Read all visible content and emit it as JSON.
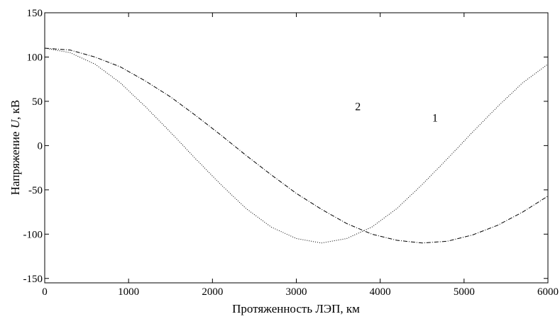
{
  "chart_data": {
    "type": "line",
    "title": "",
    "xlabel": "Протяженность ЛЭП, км",
    "ylabel_parts": [
      "Напряжение ",
      "U",
      ", кВ"
    ],
    "xlim": [
      0,
      6000
    ],
    "ylim": [
      -155,
      150
    ],
    "xticks": [
      0,
      1000,
      2000,
      3000,
      4000,
      5000,
      6000
    ],
    "yticks": [
      -150,
      -100,
      -50,
      0,
      50,
      100,
      150
    ],
    "xtick_labels": [
      "0",
      "1000",
      "2000",
      "3000",
      "4000",
      "5000",
      "6000"
    ],
    "ytick_labels": [
      "-150",
      "-100",
      "-50",
      "0",
      "50",
      "100",
      "150"
    ],
    "grid": false,
    "line_color": "#000000",
    "series": [
      {
        "name": "1",
        "x": [
          0,
          300,
          600,
          900,
          1200,
          1500,
          1800,
          2100,
          2400,
          2700,
          3000,
          3300,
          3600,
          3900,
          4200,
          4500,
          4800,
          5100,
          5400,
          5700,
          6000
        ],
        "y": [
          110,
          108,
          100,
          89,
          73,
          55,
          34,
          12,
          -11,
          -33,
          -54,
          -72,
          -88,
          -100,
          -107,
          -110,
          -108,
          -101,
          -90,
          -75,
          -57
        ]
      },
      {
        "name": "2",
        "x": [
          0,
          300,
          600,
          900,
          1200,
          1500,
          1800,
          2100,
          2400,
          2700,
          3000,
          3300,
          3600,
          3900,
          4200,
          4500,
          4800,
          5100,
          5400,
          5700,
          6000
        ],
        "y": [
          110,
          105,
          92,
          71,
          44,
          15,
          -15,
          -44,
          -71,
          -92,
          -105,
          -110,
          -105,
          -92,
          -71,
          -44,
          -15,
          15,
          44,
          71,
          92
        ]
      }
    ],
    "annotations": [
      {
        "text": "1",
        "x": 4620,
        "y": 27
      },
      {
        "text": "2",
        "x": 3700,
        "y": 40
      }
    ]
  }
}
